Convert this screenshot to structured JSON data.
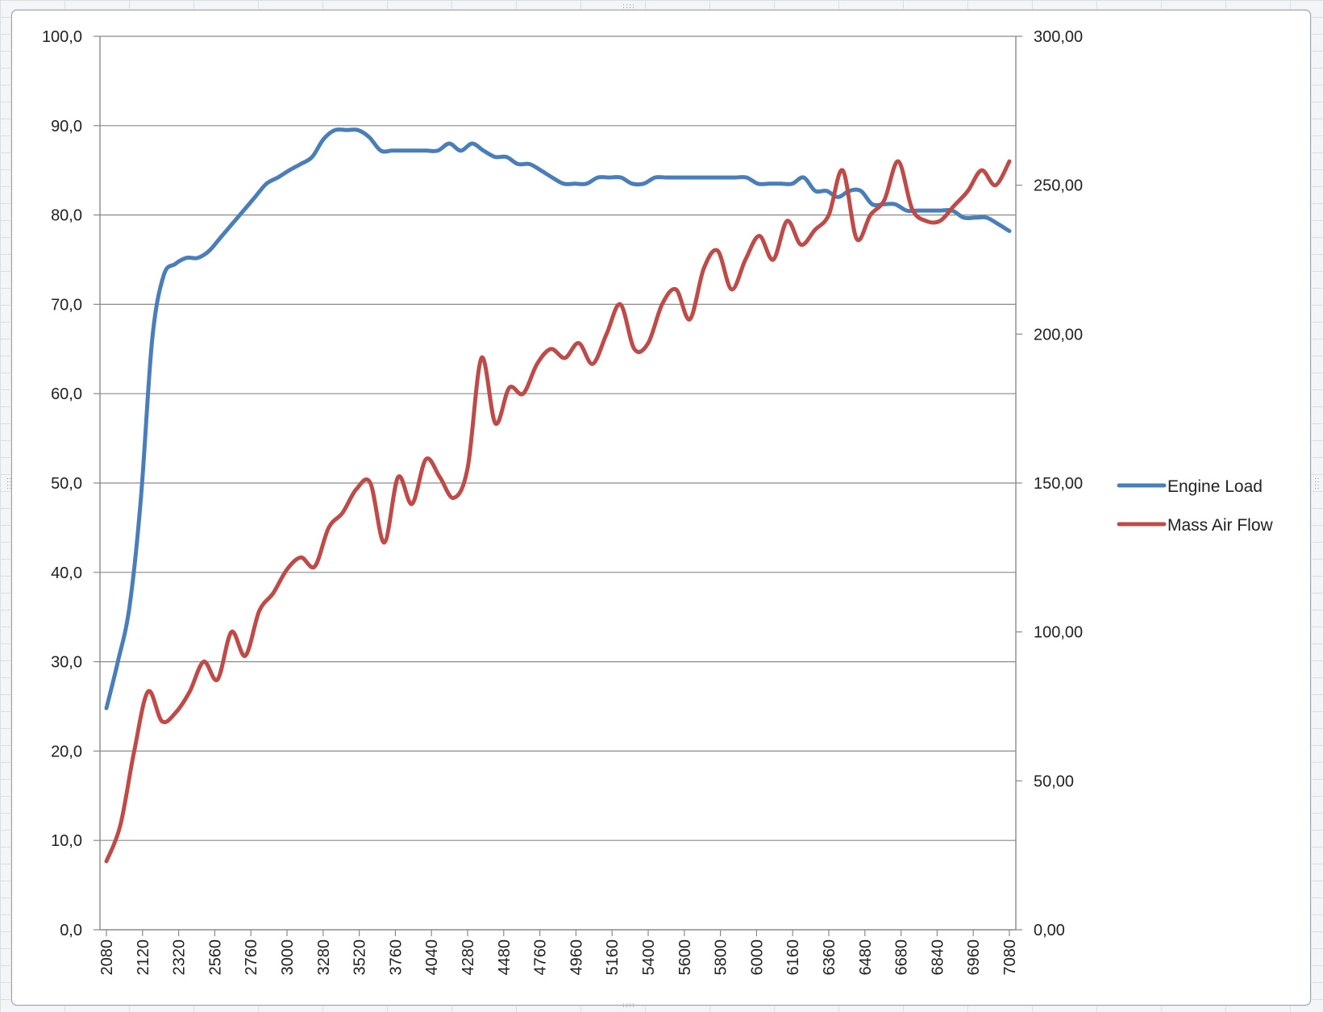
{
  "chart_data": {
    "type": "line",
    "title": "",
    "xlabel": "",
    "ylabel": "",
    "y2label": "",
    "grid": true,
    "legend_position": "right",
    "x_tick_labels": [
      "2080",
      "2120",
      "2320",
      "2560",
      "2760",
      "3000",
      "3280",
      "3520",
      "3760",
      "4040",
      "4280",
      "4480",
      "4760",
      "4960",
      "5160",
      "5400",
      "5600",
      "5800",
      "6000",
      "6160",
      "6360",
      "6480",
      "6680",
      "6840",
      "6960",
      "7080"
    ],
    "y_left": {
      "range": [
        0,
        100
      ],
      "ticks": [
        0,
        10,
        20,
        30,
        40,
        50,
        60,
        70,
        80,
        90,
        100
      ],
      "tick_labels": [
        "0,0",
        "10,0",
        "20,0",
        "30,0",
        "40,0",
        "50,0",
        "60,0",
        "70,0",
        "80,0",
        "90,0",
        "100,0"
      ]
    },
    "y_right": {
      "range": [
        0,
        300
      ],
      "ticks": [
        0,
        50,
        100,
        150,
        200,
        250,
        300
      ],
      "tick_labels": [
        "0,00",
        "50,00",
        "100,00",
        "150,00",
        "200,00",
        "250,00",
        "300,00"
      ]
    },
    "series": [
      {
        "name": "Engine Load",
        "axis": "left",
        "color": "#4a7ebb",
        "values": [
          24.8,
          30.0,
          36.0,
          48.0,
          66.0,
          73.2,
          74.5,
          75.2,
          75.2,
          76.0,
          77.5,
          79.0,
          80.5,
          82.0,
          83.5,
          84.2,
          85.0,
          85.7,
          86.5,
          88.5,
          89.5,
          89.5,
          89.5,
          88.7,
          87.2,
          87.2,
          87.2,
          87.2,
          87.2,
          87.2,
          88.0,
          87.2,
          88.0,
          87.2,
          86.5,
          86.5,
          85.7,
          85.7,
          85.0,
          84.2,
          83.5,
          83.5,
          83.5,
          84.2,
          84.2,
          84.2,
          83.5,
          83.5,
          84.2,
          84.2,
          84.2,
          84.2,
          84.2,
          84.2,
          84.2,
          84.2,
          84.2,
          83.5,
          83.5,
          83.5,
          83.5,
          84.2,
          82.7,
          82.7,
          82.0,
          82.7,
          82.7,
          81.2,
          81.2,
          81.2,
          80.5,
          80.5,
          80.5,
          80.5,
          80.5,
          79.7,
          79.7,
          79.7,
          79.0,
          78.2
        ]
      },
      {
        "name": "Mass Air Flow",
        "axis": "right",
        "color": "#be4b48",
        "values": [
          23,
          35,
          60,
          80,
          70,
          73,
          80,
          90,
          84,
          100,
          92,
          107,
          113,
          121,
          125,
          122,
          135,
          140,
          148,
          150,
          130,
          152,
          143,
          158,
          152,
          145,
          155,
          192,
          170,
          182,
          180,
          190,
          195,
          192,
          197,
          190,
          200,
          210,
          195,
          197,
          210,
          215,
          205,
          222,
          228,
          215,
          225,
          233,
          225,
          238,
          230,
          235,
          240,
          255,
          232,
          240,
          245,
          258,
          242,
          238,
          238,
          243,
          248,
          255,
          250,
          258
        ]
      }
    ]
  }
}
